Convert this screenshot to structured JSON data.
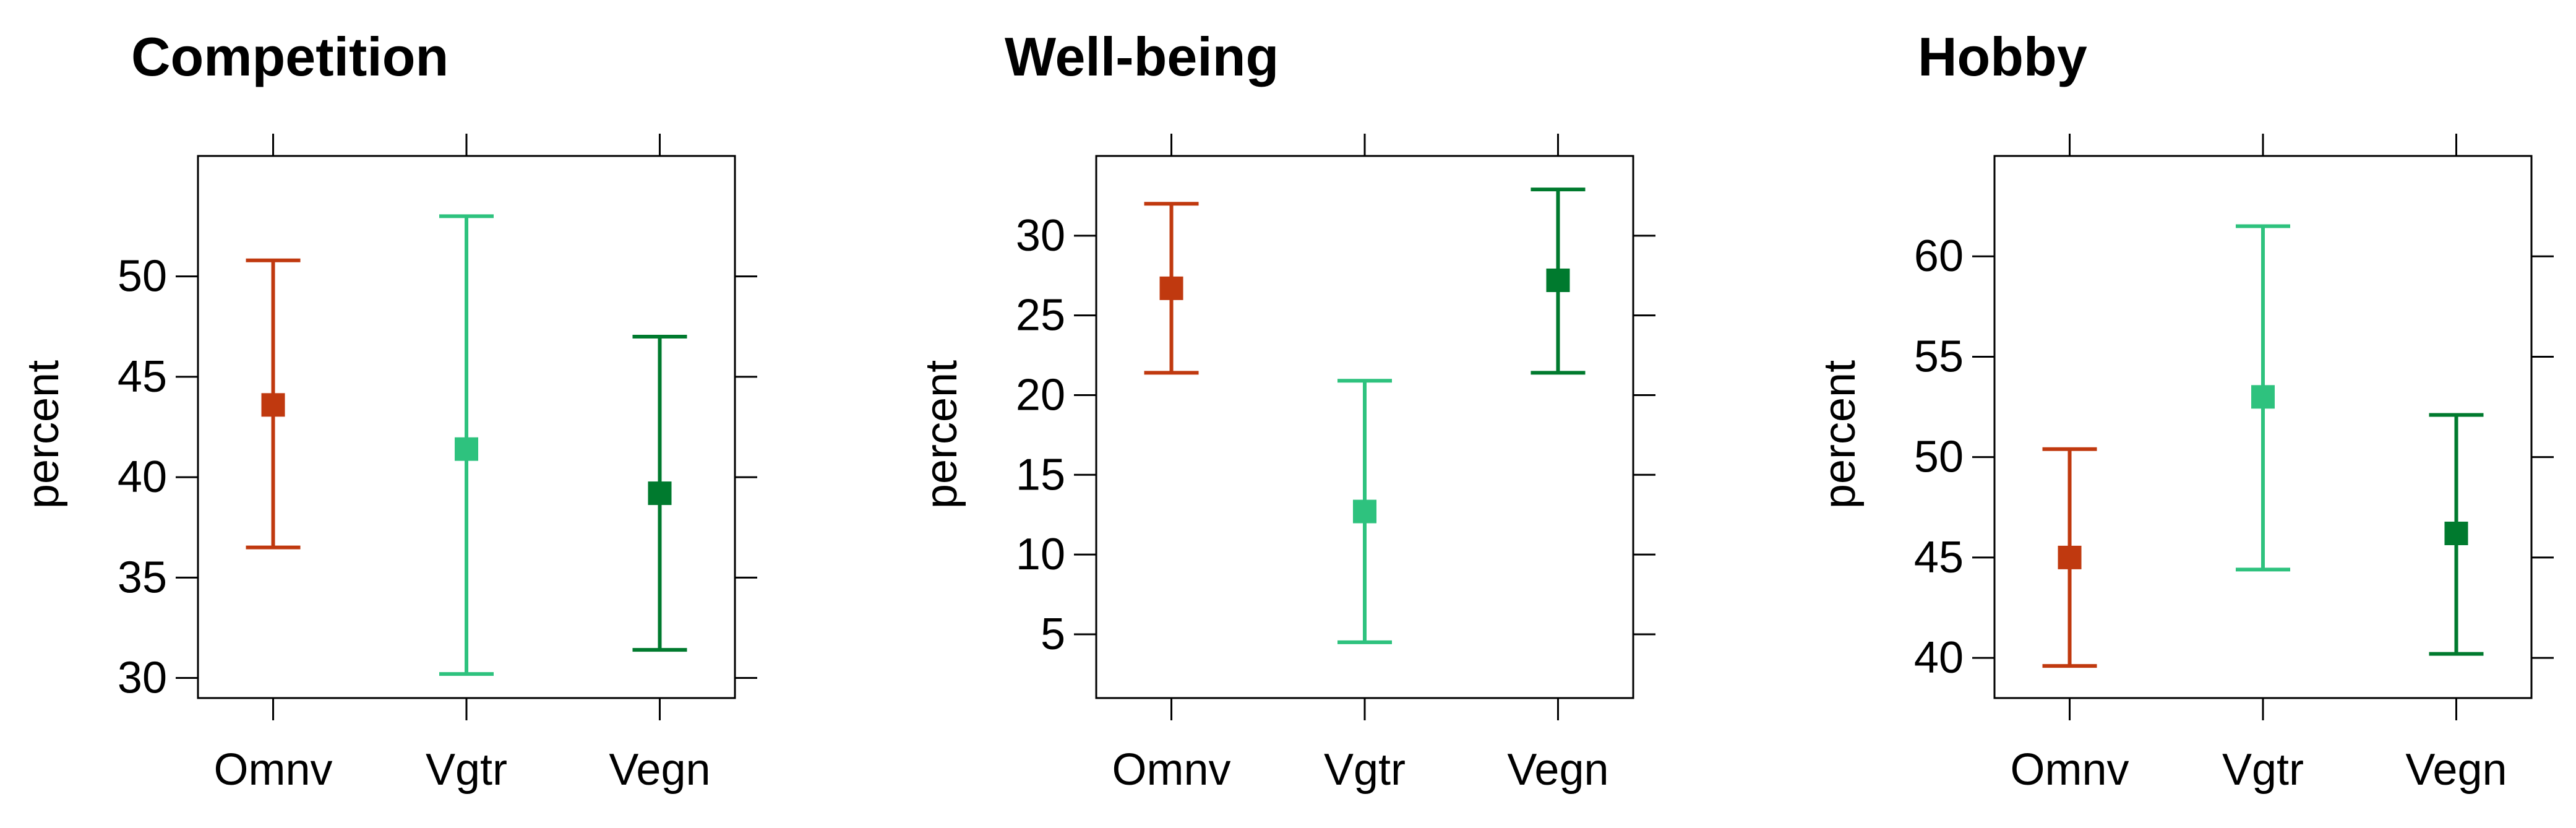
{
  "chart_data": [
    {
      "type": "errorbar",
      "title": "Competition",
      "xlabel": "",
      "ylabel": "percent",
      "categories": [
        "Omnv",
        "Vgtr",
        "Vegn"
      ],
      "ylim": [
        29,
        56
      ],
      "yticks": [
        30,
        35,
        40,
        45,
        50
      ],
      "series": [
        {
          "name": "Omnv",
          "color": "#c0390f",
          "value": 43.6,
          "lower": 36.5,
          "upper": 50.8
        },
        {
          "name": "Vgtr",
          "color": "#2ec27e",
          "value": 41.4,
          "lower": 30.2,
          "upper": 53.0
        },
        {
          "name": "Vegn",
          "color": "#007a2e",
          "value": 39.2,
          "lower": 31.4,
          "upper": 47.0
        }
      ],
      "grid": false
    },
    {
      "type": "errorbar",
      "title": "Well-being",
      "xlabel": "",
      "ylabel": "percent",
      "categories": [
        "Omnv",
        "Vgtr",
        "Vegn"
      ],
      "ylim": [
        1,
        35
      ],
      "yticks": [
        5,
        10,
        15,
        20,
        25,
        30
      ],
      "series": [
        {
          "name": "Omnv",
          "color": "#c0390f",
          "value": 26.7,
          "lower": 21.4,
          "upper": 32.0
        },
        {
          "name": "Vgtr",
          "color": "#2ec27e",
          "value": 12.7,
          "lower": 4.5,
          "upper": 20.9
        },
        {
          "name": "Vegn",
          "color": "#007a2e",
          "value": 27.2,
          "lower": 21.4,
          "upper": 32.9
        }
      ],
      "grid": false
    },
    {
      "type": "errorbar",
      "title": "Hobby",
      "xlabel": "",
      "ylabel": "percent",
      "categories": [
        "Omnv",
        "Vgtr",
        "Vegn"
      ],
      "ylim": [
        38,
        65
      ],
      "yticks": [
        40,
        45,
        50,
        55,
        60
      ],
      "series": [
        {
          "name": "Omnv",
          "color": "#c0390f",
          "value": 45.0,
          "lower": 39.6,
          "upper": 50.4
        },
        {
          "name": "Vgtr",
          "color": "#2ec27e",
          "value": 53.0,
          "lower": 44.4,
          "upper": 61.5
        },
        {
          "name": "Vegn",
          "color": "#007a2e",
          "value": 46.2,
          "lower": 40.2,
          "upper": 52.1
        }
      ],
      "grid": false
    }
  ]
}
